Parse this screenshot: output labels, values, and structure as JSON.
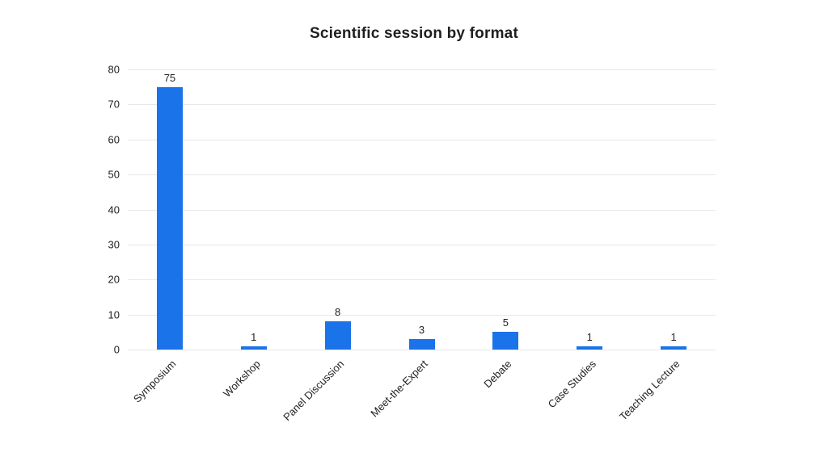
{
  "chart_data": {
    "type": "bar",
    "title": "Scientific session by format",
    "categories": [
      "Symposium",
      "Workshop",
      "Panel Discussion",
      "Meet-the-Expert",
      "Debate",
      "Case Studies",
      "Teaching Lecture"
    ],
    "values": [
      75,
      1,
      8,
      3,
      5,
      1,
      1
    ],
    "xlabel": "",
    "ylabel": "",
    "ylim": [
      0,
      80
    ],
    "ytick_step": 10,
    "grid": true,
    "legend": false,
    "x_tick_rotation_deg": 45,
    "colors": {
      "bar": "#1a73e8",
      "gridline": "#e8e8e8",
      "text": "#1f1f1f",
      "background": "#ffffff"
    }
  }
}
